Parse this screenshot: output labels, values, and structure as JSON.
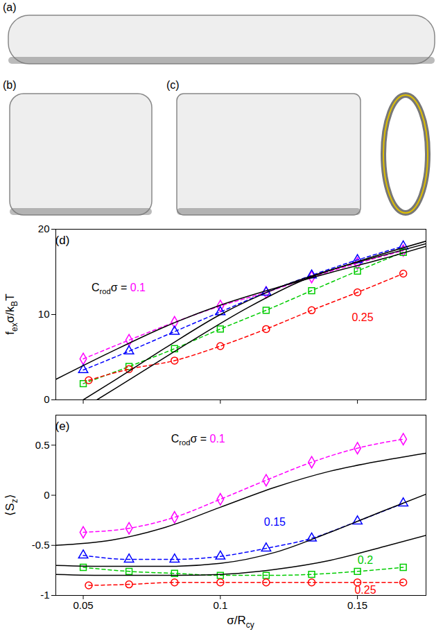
{
  "snapshot_labels": [
    "(a)",
    "(b)",
    "(c)"
  ],
  "chart_data": [
    {
      "type": "line",
      "title": "(d)",
      "ylabel": [
        {
          "text": "f"
        },
        {
          "text": "ex",
          "sub": true
        },
        {
          "text": "σ/k"
        },
        {
          "text": "B",
          "sub": true
        },
        {
          "text": "T"
        }
      ],
      "xlim": [
        0.04,
        0.175
      ],
      "xticks": [
        0.05,
        0.1,
        0.15
      ],
      "ylim": [
        0,
        20
      ],
      "yticks": [
        0,
        10,
        20
      ],
      "tick_labels": "y",
      "series": [
        {
          "color": "#ff00ff",
          "marker": "diamond",
          "line_style": "dashed",
          "x": [
            0.05,
            0.0667,
            0.0833,
            0.1,
            0.1167,
            0.1333,
            0.15,
            0.1667
          ],
          "values": [
            4.8,
            7.0,
            9.1,
            11.0,
            12.6,
            14.4,
            16.0,
            17.5
          ]
        },
        {
          "color": "#0000ff",
          "marker": "triangle",
          "line_style": "dashed",
          "x": [
            0.05,
            0.0667,
            0.0833,
            0.1,
            0.1167,
            0.1333,
            0.15,
            0.1667
          ],
          "values": [
            3.5,
            5.7,
            8.0,
            10.3,
            12.6,
            14.6,
            16.4,
            18.0
          ]
        },
        {
          "color": "#00cc00",
          "marker": "square",
          "line_style": "dashed",
          "x": [
            0.05,
            0.0667,
            0.0833,
            0.1,
            0.1167,
            0.1333,
            0.15,
            0.1667
          ],
          "values": [
            1.9,
            3.9,
            6.0,
            8.3,
            10.5,
            12.8,
            15.1,
            17.3
          ]
        },
        {
          "color": "#ff0000",
          "marker": "circle",
          "line_style": "dashed",
          "x": [
            0.052,
            0.0667,
            0.0833,
            0.1,
            0.1167,
            0.1333,
            0.15,
            0.1667
          ],
          "values": [
            2.3,
            3.6,
            4.6,
            6.3,
            8.3,
            10.5,
            12.6,
            14.8
          ]
        },
        {
          "color": "#000000",
          "line_style": "solid",
          "x": [
            0.04,
            0.06,
            0.08,
            0.1,
            0.12,
            0.14,
            0.16,
            0.175
          ],
          "values": [
            2.4,
            5.6,
            8.6,
            11.1,
            13.1,
            14.9,
            16.6,
            18.0
          ]
        },
        {
          "color": "#000000",
          "line_style": "solid",
          "x": [
            0.05,
            0.06,
            0.08,
            0.1,
            0.12,
            0.14,
            0.16,
            0.175
          ],
          "values": [
            0,
            2.0,
            6.1,
            10.0,
            13.0,
            15.2,
            17.0,
            18.3
          ]
        },
        {
          "color": "#000000",
          "line_style": "solid",
          "x": [
            0.055,
            0.07,
            0.09,
            0.11,
            0.13,
            0.15,
            0.175
          ],
          "values": [
            0,
            3.0,
            7.0,
            10.8,
            14.0,
            16.2,
            18.6
          ]
        }
      ],
      "annotations": [
        {
          "x": 0.063,
          "y": 13,
          "parts": [
            {
              "text": "C"
            },
            {
              "text": "rod",
              "sub": true
            },
            {
              "text": "σ = "
            },
            {
              "text": "0.1",
              "color": "#ff00ff"
            }
          ]
        },
        {
          "x": 0.152,
          "y": 9.5,
          "parts": [
            {
              "text": "0.25",
              "color": "#ff0000"
            }
          ]
        }
      ]
    },
    {
      "type": "line",
      "title": "(e)",
      "xlabel": [
        {
          "text": "σ/R"
        },
        {
          "text": "cy",
          "sub": true
        }
      ],
      "ylabel": [
        {
          "text": "⟨S"
        },
        {
          "text": "z",
          "sub": true
        },
        {
          "text": "⟩"
        }
      ],
      "xlim": [
        0.04,
        0.175
      ],
      "xticks": [
        0.05,
        0.1,
        0.15
      ],
      "ylim": [
        -1,
        0.8
      ],
      "yticks": [
        -1,
        -0.5,
        0,
        0.5
      ],
      "series": [
        {
          "color": "#ff00ff",
          "marker": "diamond",
          "line_style": "dashed",
          "x": [
            0.05,
            0.0667,
            0.0833,
            0.1,
            0.1167,
            0.1333,
            0.15,
            0.1667
          ],
          "values": [
            -0.37,
            -0.33,
            -0.22,
            -0.04,
            0.15,
            0.33,
            0.47,
            0.56
          ]
        },
        {
          "color": "#0000ff",
          "marker": "triangle",
          "line_style": "dashed",
          "x": [
            0.05,
            0.0667,
            0.0833,
            0.1,
            0.1167,
            0.1333,
            0.15,
            0.1667
          ],
          "values": [
            -0.6,
            -0.64,
            -0.64,
            -0.61,
            -0.53,
            -0.43,
            -0.26,
            -0.08
          ]
        },
        {
          "color": "#00cc00",
          "marker": "square",
          "line_style": "dashed",
          "x": [
            0.05,
            0.0667,
            0.0833,
            0.1,
            0.1167,
            0.1333,
            0.15,
            0.1667
          ],
          "values": [
            -0.72,
            -0.76,
            -0.78,
            -0.8,
            -0.8,
            -0.79,
            -0.76,
            -0.72
          ]
        },
        {
          "color": "#ff0000",
          "marker": "circle",
          "line_style": "dashed",
          "x": [
            0.052,
            0.0667,
            0.0833,
            0.1,
            0.1167,
            0.1333,
            0.15,
            0.1667
          ],
          "values": [
            -0.9,
            -0.89,
            -0.87,
            -0.87,
            -0.87,
            -0.87,
            -0.87,
            -0.87
          ]
        },
        {
          "color": "#000000",
          "line_style": "solid",
          "x": [
            0.04,
            0.06,
            0.08,
            0.1,
            0.12,
            0.14,
            0.16,
            0.175
          ],
          "values": [
            -0.5,
            -0.45,
            -0.32,
            -0.12,
            0.08,
            0.24,
            0.35,
            0.42
          ]
        },
        {
          "color": "#000000",
          "line_style": "solid",
          "x": [
            0.04,
            0.06,
            0.08,
            0.1,
            0.12,
            0.14,
            0.16,
            0.175
          ],
          "values": [
            -0.7,
            -0.71,
            -0.71,
            -0.68,
            -0.57,
            -0.37,
            -0.15,
            0.01
          ]
        },
        {
          "color": "#000000",
          "line_style": "solid",
          "x": [
            0.04,
            0.06,
            0.08,
            0.1,
            0.12,
            0.14,
            0.16,
            0.175
          ],
          "values": [
            -0.79,
            -0.8,
            -0.8,
            -0.79,
            -0.74,
            -0.65,
            -0.51,
            -0.4
          ]
        }
      ],
      "annotations": [
        {
          "x": 0.092,
          "y": 0.55,
          "parts": [
            {
              "text": "C"
            },
            {
              "text": "rod",
              "sub": true
            },
            {
              "text": "σ = "
            },
            {
              "text": "0.1",
              "color": "#ff00ff"
            }
          ]
        },
        {
          "x": 0.12,
          "y": -0.28,
          "parts": [
            {
              "text": "0.15",
              "color": "#0000ff"
            }
          ]
        },
        {
          "x": 0.153,
          "y": -0.66,
          "parts": [
            {
              "text": "0.2",
              "color": "#00cc00"
            }
          ]
        },
        {
          "x": 0.153,
          "y": -0.955,
          "parts": [
            {
              "text": "0.25",
              "color": "#ff0000"
            }
          ]
        }
      ]
    }
  ]
}
